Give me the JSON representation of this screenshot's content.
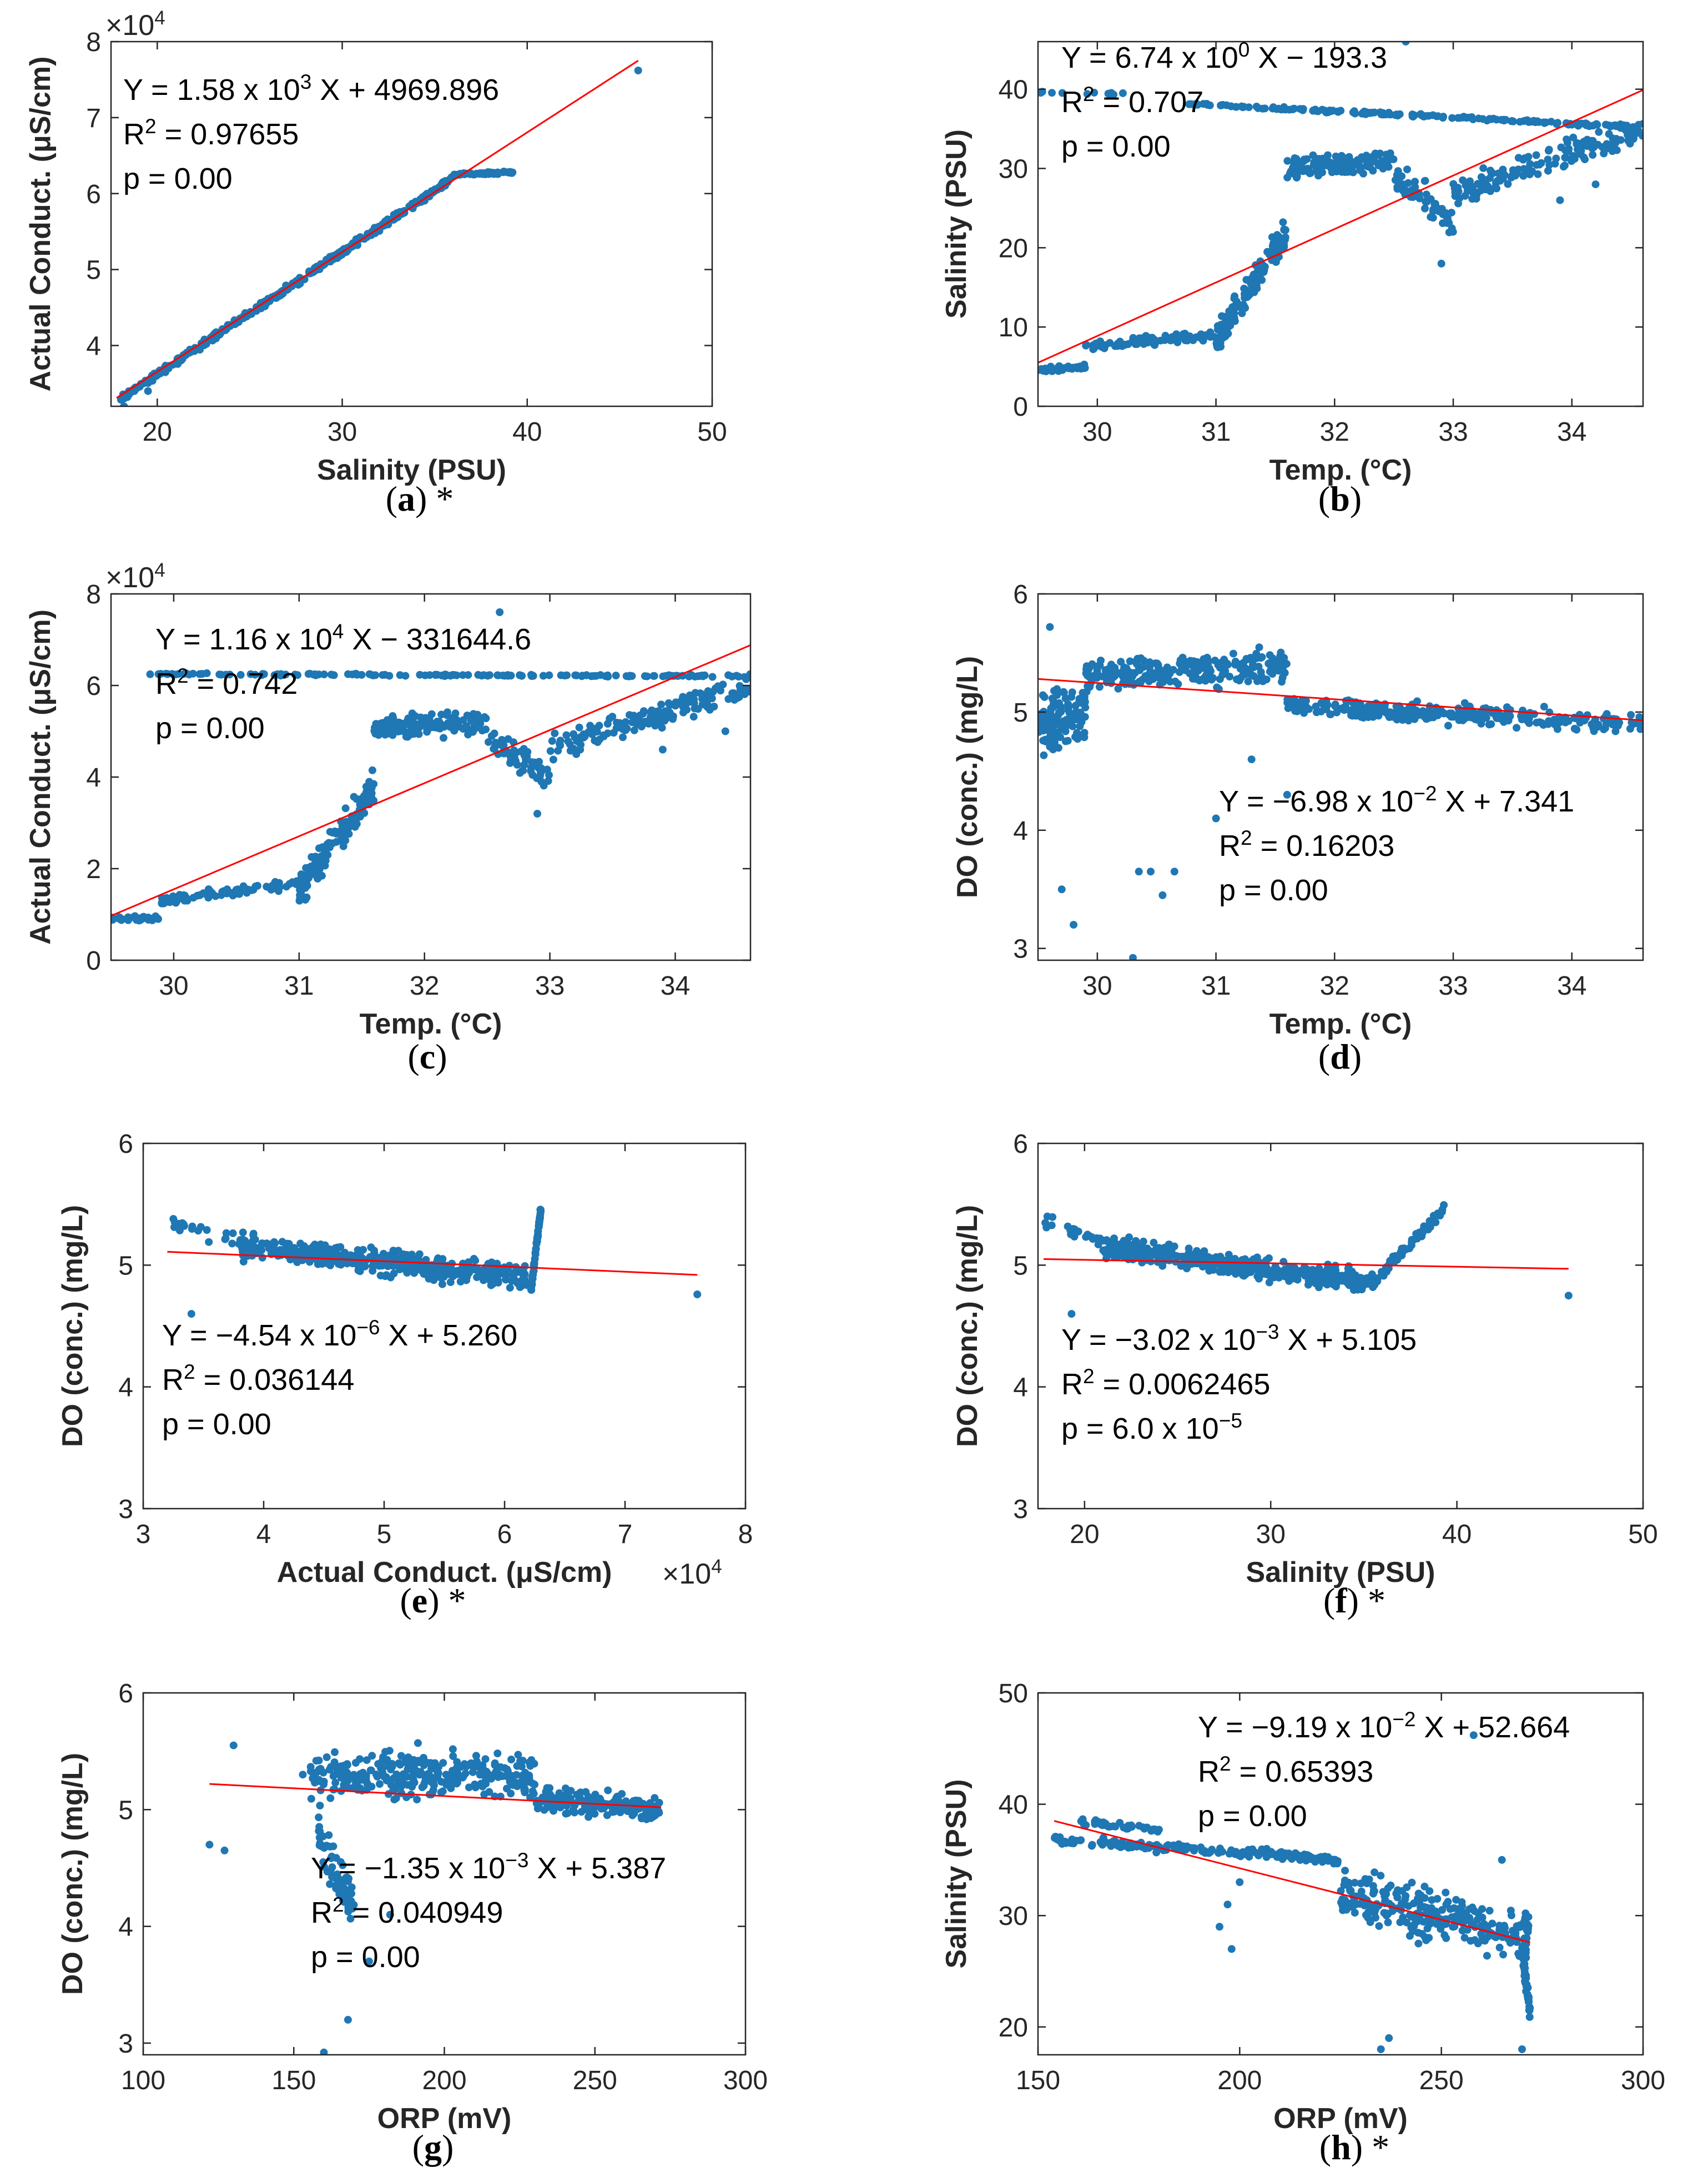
{
  "colors": {
    "points": "#1f77b4",
    "fit_line": "#ff0000",
    "axis": "#262626"
  },
  "chart_data": [
    {
      "id": "a",
      "type": "scatter",
      "caption": {
        "letter": "a",
        "open": "(",
        "close": ")",
        "suffix": " *"
      },
      "xlabel": "Salinity (PSU)",
      "ylabel": "Actual Conduct. (μS/cm)",
      "xlim": [
        17.5,
        50
      ],
      "ylim": [
        3.2,
        8
      ],
      "xticks": [
        20,
        30,
        40,
        50
      ],
      "yticks": [
        4,
        5,
        6,
        7,
        8
      ],
      "y_multiplier": "×10^4",
      "annotation": [
        "Y = 1.58 x 10^3 X + 4969.896",
        "R^2 = 0.97655",
        "p = 0.00"
      ],
      "fit_line": {
        "x": [
          17.8,
          46.0
        ],
        "y": [
          3.31,
          7.75
        ]
      },
      "segments": [
        {
          "x0": 18.0,
          "y0": 3.3,
          "x1": 36.0,
          "y1": 6.2,
          "n": 400,
          "spread": 0.06
        },
        {
          "x0": 36.0,
          "y0": 6.25,
          "x1": 39.3,
          "y1": 6.28,
          "n": 60,
          "spread": 0.02
        }
      ],
      "points": [
        [
          46.0,
          7.62
        ],
        [
          18.2,
          3.2
        ],
        [
          19.5,
          3.4
        ]
      ]
    },
    {
      "id": "b",
      "type": "scatter",
      "caption": {
        "letter": "b",
        "open": "(",
        "close": ")",
        "suffix": ""
      },
      "xlabel": "Temp. (°C)",
      "ylabel": "Salinity (PSU)",
      "xlim": [
        29.5,
        34.6
      ],
      "ylim": [
        0,
        46
      ],
      "xticks": [
        30,
        31,
        32,
        33,
        34
      ],
      "yticks": [
        0,
        10,
        20,
        30,
        40
      ],
      "annotation": [
        "Y = 6.74 x 10^0 X − 193.3",
        "R^2 = 0.707",
        "p = 0.00"
      ],
      "fit_line": {
        "x": [
          29.5,
          34.6
        ],
        "y": [
          5.5,
          39.9
        ]
      },
      "segments": [
        {
          "x0": 29.5,
          "y0": 4.5,
          "x1": 29.9,
          "y1": 5.0,
          "n": 40,
          "spread": 0.5
        },
        {
          "x0": 29.9,
          "y0": 7.5,
          "x1": 31.0,
          "y1": 9.0,
          "n": 90,
          "spread": 0.8
        },
        {
          "x0": 31.0,
          "y0": 8.0,
          "x1": 31.6,
          "y1": 22.0,
          "n": 140,
          "spread": 3.0
        },
        {
          "x0": 31.6,
          "y0": 30.0,
          "x1": 32.5,
          "y1": 31.0,
          "n": 140,
          "spread": 2.0
        },
        {
          "x0": 32.5,
          "y0": 29.0,
          "x1": 33.0,
          "y1": 23.0,
          "n": 60,
          "spread": 3.0
        },
        {
          "x0": 33.0,
          "y0": 27.0,
          "x1": 34.6,
          "y1": 35.0,
          "n": 160,
          "spread": 2.5
        },
        {
          "x0": 30.7,
          "y0": 38.2,
          "x1": 34.6,
          "y1": 35.2,
          "n": 180,
          "spread": 0.3
        },
        {
          "x0": 29.5,
          "y0": 39.6,
          "x1": 30.3,
          "y1": 39.4,
          "n": 12,
          "spread": 0.2
        }
      ],
      "points": [
        [
          32.6,
          46.0
        ],
        [
          34.2,
          28.0
        ],
        [
          33.9,
          26.0
        ],
        [
          32.9,
          18.0
        ]
      ]
    },
    {
      "id": "c",
      "type": "scatter",
      "caption": {
        "letter": "c",
        "open": "(",
        "close": ")",
        "suffix": ""
      },
      "xlabel": "Temp. (°C)",
      "ylabel": "Actual Conduct. (μS/cm)",
      "xlim": [
        29.5,
        34.6
      ],
      "ylim": [
        0,
        8
      ],
      "xticks": [
        30,
        31,
        32,
        33,
        34
      ],
      "yticks": [
        0,
        2,
        4,
        6,
        8
      ],
      "y_multiplier": "×10^4",
      "annotation": [
        "Y = 1.16 x 10^4 X − 331644.6",
        "R^2 = 0.742",
        "p = 0.00"
      ],
      "fit_line": {
        "x": [
          29.5,
          34.6
        ],
        "y": [
          0.97,
          6.88
        ]
      },
      "segments": [
        {
          "x0": 29.5,
          "y0": 0.9,
          "x1": 29.9,
          "y1": 0.9,
          "n": 40,
          "spread": 0.08
        },
        {
          "x0": 29.9,
          "y0": 1.3,
          "x1": 31.0,
          "y1": 1.7,
          "n": 90,
          "spread": 0.15
        },
        {
          "x0": 31.0,
          "y0": 1.5,
          "x1": 31.6,
          "y1": 3.8,
          "n": 140,
          "spread": 0.5
        },
        {
          "x0": 31.6,
          "y0": 5.1,
          "x1": 32.5,
          "y1": 5.2,
          "n": 140,
          "spread": 0.35
        },
        {
          "x0": 32.5,
          "y0": 4.9,
          "x1": 33.0,
          "y1": 4.0,
          "n": 60,
          "spread": 0.5
        },
        {
          "x0": 33.0,
          "y0": 4.6,
          "x1": 34.6,
          "y1": 6.0,
          "n": 160,
          "spread": 0.4
        },
        {
          "x0": 29.8,
          "y0": 6.25,
          "x1": 34.6,
          "y1": 6.2,
          "n": 150,
          "spread": 0.03
        }
      ],
      "points": [
        [
          32.6,
          7.6
        ],
        [
          34.4,
          5.0
        ],
        [
          33.9,
          4.6
        ],
        [
          32.9,
          3.2
        ]
      ]
    },
    {
      "id": "d",
      "type": "scatter",
      "caption": {
        "letter": "d",
        "open": "(",
        "close": ")",
        "suffix": ""
      },
      "xlabel": "Temp. (°C)",
      "ylabel": "DO (conc.) (mg/L)",
      "xlim": [
        29.5,
        34.6
      ],
      "ylim": [
        2.9,
        6
      ],
      "xticks": [
        30,
        31,
        32,
        33,
        34
      ],
      "yticks": [
        3,
        4,
        5,
        6
      ],
      "annotation": [
        "Y = −6.98 x 10^−2 X + 7.341",
        "R^2 = 0.16203",
        "p = 0.00"
      ],
      "fit_line": {
        "x": [
          29.5,
          34.6
        ],
        "y": [
          5.28,
          4.93
        ]
      },
      "segments": [
        {
          "x0": 29.5,
          "y0": 4.9,
          "x1": 29.9,
          "y1": 5.0,
          "n": 120,
          "spread": 0.35
        },
        {
          "x0": 29.9,
          "y0": 5.3,
          "x1": 31.6,
          "y1": 5.4,
          "n": 260,
          "spread": 0.2
        },
        {
          "x0": 31.6,
          "y0": 5.05,
          "x1": 34.6,
          "y1": 4.9,
          "n": 300,
          "spread": 0.12
        }
      ],
      "points": [
        [
          29.7,
          3.5
        ],
        [
          29.8,
          3.2
        ],
        [
          30.3,
          2.92
        ],
        [
          30.35,
          3.65
        ],
        [
          30.45,
          3.65
        ],
        [
          30.55,
          3.45
        ],
        [
          30.65,
          3.65
        ],
        [
          29.6,
          5.72
        ],
        [
          31.6,
          4.3
        ],
        [
          31.3,
          4.6
        ],
        [
          31.0,
          4.1
        ]
      ]
    },
    {
      "id": "e",
      "type": "scatter",
      "caption": {
        "letter": "e",
        "open": "(",
        "close": ")",
        "suffix": " *"
      },
      "xlabel": "Actual Conduct. (μS/cm)",
      "ylabel": "DO (conc.) (mg/L)",
      "xlim": [
        3,
        8
      ],
      "ylim": [
        3,
        6
      ],
      "xticks": [
        3,
        4,
        5,
        6,
        7,
        8
      ],
      "yticks": [
        3,
        4,
        5,
        6
      ],
      "x_multiplier": "×10^4",
      "annotation": [
        "Y = −4.54 x 10^−6 X + 5.260",
        "R^2 = 0.036144",
        "p = 0.00"
      ],
      "fit_line": {
        "x": [
          3.2,
          7.6
        ],
        "y": [
          5.11,
          4.92
        ]
      },
      "segments": [
        {
          "x0": 3.8,
          "y0": 5.15,
          "x1": 6.2,
          "y1": 4.9,
          "n": 450,
          "spread": 0.14
        },
        {
          "x0": 6.22,
          "y0": 4.8,
          "x1": 6.3,
          "y1": 5.45,
          "n": 60,
          "spread": 0.04
        },
        {
          "x0": 3.2,
          "y0": 5.35,
          "x1": 3.8,
          "y1": 5.2,
          "n": 20,
          "spread": 0.08
        }
      ],
      "points": [
        [
          7.6,
          4.76
        ],
        [
          3.4,
          4.6
        ],
        [
          3.25,
          5.38
        ]
      ]
    },
    {
      "id": "f",
      "type": "scatter",
      "caption": {
        "letter": "f",
        "open": "(",
        "close": ")",
        "suffix": " *"
      },
      "xlabel": "Salinity (PSU)",
      "ylabel": "DO (conc.) (mg/L)",
      "xlim": [
        17.5,
        50
      ],
      "ylim": [
        3,
        6
      ],
      "xticks": [
        20,
        30,
        40,
        50
      ],
      "yticks": [
        3,
        4,
        5,
        6
      ],
      "annotation": [
        "Y = −3.02 x 10^−3 X + 5.105",
        "R^2 = 0.0062465",
        "p = 6.0 x 10^−5"
      ],
      "fit_line": {
        "x": [
          17.8,
          46.0
        ],
        "y": [
          5.05,
          4.97
        ]
      },
      "segments": [
        {
          "x0": 21.0,
          "y0": 5.15,
          "x1": 35.5,
          "y1": 4.85,
          "n": 450,
          "spread": 0.13
        },
        {
          "x0": 35.5,
          "y0": 4.85,
          "x1": 39.3,
          "y1": 5.47,
          "n": 70,
          "spread": 0.07
        },
        {
          "x0": 17.8,
          "y0": 5.35,
          "x1": 21.0,
          "y1": 5.2,
          "n": 20,
          "spread": 0.07
        }
      ],
      "points": [
        [
          46.0,
          4.75
        ],
        [
          19.3,
          4.6
        ],
        [
          18.0,
          5.4
        ]
      ]
    },
    {
      "id": "g",
      "type": "scatter",
      "caption": {
        "letter": "g",
        "open": "(",
        "close": ")",
        "suffix": ""
      },
      "xlabel": "ORP (mV)",
      "ylabel": "DO (conc.) (mg/L)",
      "xlim": [
        100,
        300
      ],
      "ylim": [
        2.9,
        6
      ],
      "xticks": [
        100,
        150,
        200,
        250,
        300
      ],
      "yticks": [
        3,
        4,
        5,
        6
      ],
      "annotation": [
        "Y = −1.35 x 10^−3 X + 5.387",
        "R^2 = 0.040949",
        "p = 0.00"
      ],
      "fit_line": {
        "x": [
          122,
          272
        ],
        "y": [
          5.22,
          5.02
        ]
      },
      "segments": [
        {
          "x0": 155,
          "y0": 5.3,
          "x1": 230,
          "y1": 5.3,
          "n": 300,
          "spread": 0.28
        },
        {
          "x0": 230,
          "y0": 5.1,
          "x1": 272,
          "y1": 5.0,
          "n": 160,
          "spread": 0.15
        },
        {
          "x0": 158,
          "y0": 4.8,
          "x1": 170,
          "y1": 4.2,
          "n": 60,
          "spread": 0.3
        }
      ],
      "points": [
        [
          122,
          4.7
        ],
        [
          127,
          4.65
        ],
        [
          130,
          5.55
        ],
        [
          160,
          2.92
        ],
        [
          168,
          3.2
        ],
        [
          175,
          3.7
        ],
        [
          182,
          4.1
        ],
        [
          153,
          5.3
        ],
        [
          268,
          4.95
        ]
      ]
    },
    {
      "id": "h",
      "type": "scatter",
      "caption": {
        "letter": "h",
        "open": "(",
        "close": ")",
        "suffix": " *"
      },
      "xlabel": "ORP (mV)",
      "ylabel": "Salinity (PSU)",
      "xlim": [
        150,
        300
      ],
      "ylim": [
        17.5,
        50
      ],
      "xticks": [
        150,
        200,
        250,
        300
      ],
      "yticks": [
        20,
        30,
        40,
        50
      ],
      "annotation": [
        "Y = −9.19 x 10^−2 X + 52.664",
        "R^2 = 0.65393",
        "p = 0.00"
      ],
      "fit_line": {
        "x": [
          154,
          272
        ],
        "y": [
          38.5,
          27.6
        ]
      },
      "segments": [
        {
          "x0": 154,
          "y0": 36.8,
          "x1": 225,
          "y1": 35.0,
          "n": 200,
          "spread": 0.6
        },
        {
          "x0": 160,
          "y0": 38.5,
          "x1": 180,
          "y1": 37.6,
          "n": 40,
          "spread": 0.4
        },
        {
          "x0": 225,
          "y0": 32.0,
          "x1": 272,
          "y1": 28.0,
          "n": 260,
          "spread": 3.2
        },
        {
          "x0": 270,
          "y0": 27.0,
          "x1": 272,
          "y1": 21.0,
          "n": 40,
          "spread": 1.5
        }
      ],
      "points": [
        [
          258,
          46.2
        ],
        [
          195,
          29.0
        ],
        [
          197,
          31.0
        ],
        [
          198,
          27.0
        ],
        [
          235,
          18.0
        ],
        [
          237,
          19.0
        ],
        [
          270,
          18.0
        ],
        [
          265,
          35.0
        ],
        [
          200,
          33.0
        ]
      ]
    }
  ]
}
